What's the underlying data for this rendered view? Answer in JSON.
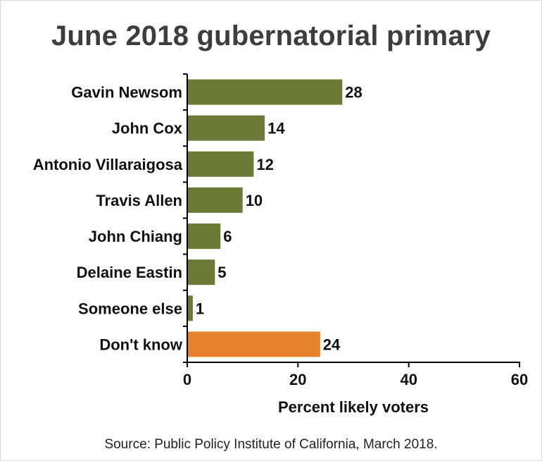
{
  "title": "June 2018 gubernatorial primary",
  "source": "Source: Public Policy Institute of California, March 2018.",
  "colors": {
    "primary": "#6b7a36",
    "highlight": "#e5822b"
  },
  "chart_data": {
    "type": "bar",
    "orientation": "horizontal",
    "title": "June 2018 gubernatorial primary",
    "xlabel": "Percent likely voters",
    "ylabel": "",
    "xlim": [
      0,
      60
    ],
    "xticks": [
      0,
      20,
      40,
      60
    ],
    "grid": false,
    "categories": [
      "Gavin Newsom",
      "John Cox",
      "Antonio Villaraigosa",
      "Travis Allen",
      "John Chiang",
      "Delaine Eastin",
      "Someone else",
      "Don't know"
    ],
    "values": [
      28,
      14,
      12,
      10,
      6,
      5,
      1,
      24
    ],
    "bar_colors": [
      "#6b7a36",
      "#6b7a36",
      "#6b7a36",
      "#6b7a36",
      "#6b7a36",
      "#6b7a36",
      "#6b7a36",
      "#e5822b"
    ]
  }
}
